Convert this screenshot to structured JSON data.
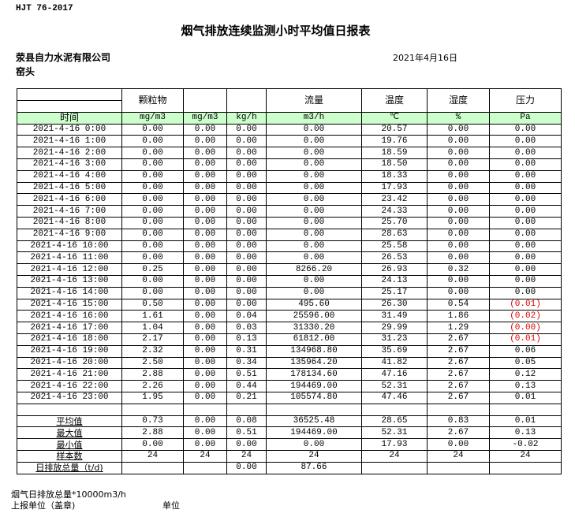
{
  "standard": "HJT  76-2017",
  "title": "烟气排放连续监测小时平均值日报表",
  "company": "荥县自力水泥有限公司",
  "date": "2021年4月16日",
  "unit_name": "窑头",
  "headers": [
    "颗粒物",
    "",
    "",
    "流量",
    "温度",
    "湿度",
    "压力"
  ],
  "time_label": "时间",
  "units": [
    "mg/m3",
    "mg/m3",
    "kg/h",
    "m3/h",
    "℃",
    "%",
    "Pa"
  ],
  "rows": [
    [
      "2021-4-16 0:00",
      "0.00",
      "0.00",
      "0.00",
      "0.00",
      "20.57",
      "0.00",
      "0.00"
    ],
    [
      "2021-4-16 1:00",
      "0.00",
      "0.00",
      "0.00",
      "0.00",
      "19.76",
      "0.00",
      "0.00"
    ],
    [
      "2021-4-16 2:00",
      "0.00",
      "0.00",
      "0.00",
      "0.00",
      "18.59",
      "0.00",
      "0.00"
    ],
    [
      "2021-4-16 3:00",
      "0.00",
      "0.00",
      "0.00",
      "0.00",
      "18.50",
      "0.00",
      "0.00"
    ],
    [
      "2021-4-16 4:00",
      "0.00",
      "0.00",
      "0.00",
      "0.00",
      "18.33",
      "0.00",
      "0.00"
    ],
    [
      "2021-4-16 5:00",
      "0.00",
      "0.00",
      "0.00",
      "0.00",
      "17.93",
      "0.00",
      "0.00"
    ],
    [
      "2021-4-16 6:00",
      "0.00",
      "0.00",
      "0.00",
      "0.00",
      "23.42",
      "0.00",
      "0.00"
    ],
    [
      "2021-4-16 7:00",
      "0.00",
      "0.00",
      "0.00",
      "0.00",
      "24.33",
      "0.00",
      "0.00"
    ],
    [
      "2021-4-16 8:00",
      "0.00",
      "0.00",
      "0.00",
      "0.00",
      "25.70",
      "0.00",
      "0.00"
    ],
    [
      "2021-4-16 9:00",
      "0.00",
      "0.00",
      "0.00",
      "0.00",
      "28.63",
      "0.00",
      "0.00"
    ],
    [
      "2021-4-16 10:00",
      "0.00",
      "0.00",
      "0.00",
      "0.00",
      "25.58",
      "0.00",
      "0.00"
    ],
    [
      "2021-4-16 11:00",
      "0.00",
      "0.00",
      "0.00",
      "0.00",
      "26.53",
      "0.00",
      "0.00"
    ],
    [
      "2021-4-16 12:00",
      "0.25",
      "0.00",
      "0.00",
      "8266.20",
      "26.93",
      "0.32",
      "0.00"
    ],
    [
      "2021-4-16 13:00",
      "0.00",
      "0.00",
      "0.00",
      "0.00",
      "24.13",
      "0.00",
      "0.00"
    ],
    [
      "2021-4-16 14:00",
      "0.00",
      "0.00",
      "0.00",
      "0.00",
      "25.17",
      "0.00",
      "0.00"
    ],
    [
      "2021-4-16 15:00",
      "0.50",
      "0.00",
      "0.00",
      "495.60",
      "26.30",
      "0.54",
      "(0.01)"
    ],
    [
      "2021-4-16 16:00",
      "1.61",
      "0.00",
      "0.04",
      "25596.00",
      "31.49",
      "1.86",
      "(0.02)"
    ],
    [
      "2021-4-16 17:00",
      "1.04",
      "0.00",
      "0.03",
      "31330.20",
      "29.99",
      "1.29",
      "(0.00)"
    ],
    [
      "2021-4-16 18:00",
      "2.17",
      "0.00",
      "0.13",
      "61812.00",
      "31.23",
      "2.67",
      "(0.01)"
    ],
    [
      "2021-4-16 19:00",
      "2.32",
      "0.00",
      "0.31",
      "134968.80",
      "35.69",
      "2.67",
      "0.06"
    ],
    [
      "2021-4-16 20:00",
      "2.50",
      "0.00",
      "0.34",
      "135964.20",
      "41.82",
      "2.67",
      "0.05"
    ],
    [
      "2021-4-16 21:00",
      "2.88",
      "0.00",
      "0.51",
      "178134.60",
      "47.16",
      "2.67",
      "0.12"
    ],
    [
      "2021-4-16 22:00",
      "2.26",
      "0.00",
      "0.44",
      "194469.00",
      "52.31",
      "2.67",
      "0.13"
    ],
    [
      "2021-4-16 23:00",
      "1.95",
      "0.00",
      "0.21",
      "105574.80",
      "47.46",
      "2.67",
      "0.01"
    ]
  ],
  "summary": [
    [
      "平均值",
      "0.73",
      "0.00",
      "0.08",
      "36525.48",
      "28.65",
      "0.83",
      "0.01"
    ],
    [
      "最大值",
      "2.88",
      "0.00",
      "0.51",
      "194469.00",
      "52.31",
      "2.67",
      "0.13"
    ],
    [
      "最小值",
      "0.00",
      "0.00",
      "0.00",
      "0.00",
      "17.93",
      "0.00",
      "-0.02"
    ],
    [
      "样本数",
      "24",
      "24",
      "24",
      "24",
      "24",
      "24",
      "24"
    ],
    [
      "日排放总量（t/d)",
      "",
      "",
      "0.00",
      "87.66",
      "",
      "",
      ""
    ]
  ],
  "negative_color": "#e00000",
  "header_bg": "#ccffcc",
  "footer_line1": "烟气日排放总量*10000m3/h",
  "footer_line2": "上报单位（盖章)",
  "footer_line2_right": "单位"
}
